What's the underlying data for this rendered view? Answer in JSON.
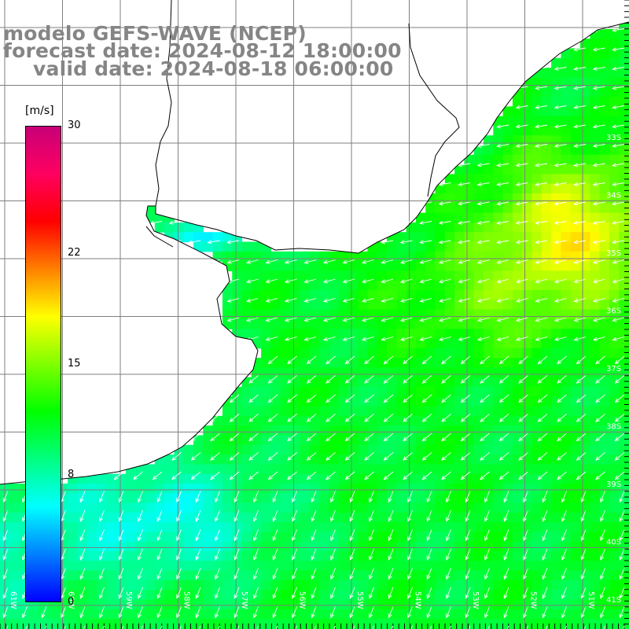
{
  "title": {
    "line1": "modelo GEFS-WAVE (NCEP)",
    "line2": "forecast date: 2024-08-12 18:00:00",
    "line3": "valid date: 2024-08-18 06:00:00"
  },
  "variable": "wind speed",
  "colorbar": {
    "units": "[m/s]",
    "min": 0,
    "max": 30,
    "ticks": [
      "30",
      "22",
      "15",
      "8",
      "0"
    ],
    "tick_values": [
      30,
      22,
      15,
      8,
      0
    ],
    "colors": [
      "#0000ff",
      "#0080ff",
      "#00ffff",
      "#00ff80",
      "#00ff00",
      "#80ff00",
      "#ffff00",
      "#ff8000",
      "#ff0000",
      "#ff0060",
      "#c80078"
    ]
  },
  "lat_labels": [
    "33S",
    "34S",
    "35S",
    "36S",
    "37S",
    "38S",
    "39S",
    "40S",
    "41S"
  ],
  "lon_labels": [
    "61W",
    "60W",
    "59W",
    "58W",
    "57W",
    "56W",
    "55W",
    "54W",
    "53W",
    "52W",
    "51W"
  ],
  "colors": {
    "land": "#ffffff",
    "coastline": "#000000",
    "grid": "#7f7f7f",
    "arrows": "#ffffff",
    "title_text": "#858585"
  },
  "icons": {
    "wind_vector": "arrow-icon"
  }
}
